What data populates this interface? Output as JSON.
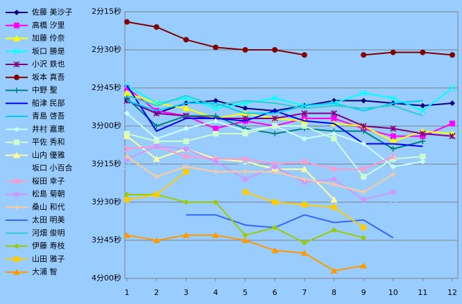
{
  "chart_data": {
    "type": "line",
    "x": [
      1,
      2,
      3,
      4,
      5,
      6,
      7,
      8,
      9,
      10,
      11,
      12
    ],
    "xlim": [
      1,
      12
    ],
    "xticks": [
      1,
      2,
      3,
      4,
      5,
      6,
      7,
      8,
      9,
      10,
      11,
      12
    ],
    "ylim": [
      135,
      240
    ],
    "y_inverted": true,
    "yticks": [
      {
        "value": 135,
        "label": "2分15秒"
      },
      {
        "value": 150,
        "label": "2分30秒"
      },
      {
        "value": 165,
        "label": "2分45秒"
      },
      {
        "value": 180,
        "label": "3分00秒"
      },
      {
        "value": 195,
        "label": "3分15秒"
      },
      {
        "value": 210,
        "label": "3分30秒"
      },
      {
        "value": 225,
        "label": "3分45秒"
      },
      {
        "value": 240,
        "label": "4分00秒"
      }
    ],
    "grid": true,
    "legend": "left",
    "series": [
      {
        "name": "佐藤 美沙子",
        "color": "#000080",
        "marker": "diamond",
        "values": [
          170,
          175,
          171,
          170,
          173,
          174,
          172,
          170,
          170,
          171,
          172,
          171
        ]
      },
      {
        "name": "高橋 汐里",
        "color": "#ff00ff",
        "marker": "square",
        "values": [
          165,
          174,
          176,
          181,
          178,
          180,
          177,
          177,
          181,
          184,
          184,
          179
        ]
      },
      {
        "name": "加藤 伶奈",
        "color": "#ffff00",
        "marker": "triangle",
        "values": [
          167,
          171,
          173,
          177,
          175,
          177,
          178,
          179,
          180,
          186,
          182,
          183
        ]
      },
      {
        "name": "坂口 勝是",
        "color": "#00ffff",
        "marker": "x",
        "values": [
          164,
          171,
          169,
          173,
          171,
          169,
          172,
          171,
          167,
          169,
          174,
          165
        ]
      },
      {
        "name": "小沢 鉄也",
        "color": "#800080",
        "marker": "asterisk",
        "values": [
          170,
          175,
          176,
          177,
          177,
          177,
          175,
          175,
          180,
          181,
          183,
          184
        ]
      },
      {
        "name": "坂本 真吾",
        "color": "#800000",
        "marker": "circle",
        "values": [
          139,
          141,
          146,
          149,
          150,
          150,
          152,
          null,
          152,
          151,
          151,
          152
        ]
      },
      {
        "name": "中野 聖",
        "color": "#008080",
        "marker": "plus",
        "values": [
          169,
          180,
          176,
          176,
          181,
          183,
          181,
          182,
          182,
          189,
          186,
          null
        ]
      },
      {
        "name": "船津 民部",
        "color": "#0000ff",
        "marker": "none",
        "values": [
          164,
          182,
          177,
          177,
          178,
          174,
          178,
          179,
          187,
          187,
          188,
          null
        ]
      },
      {
        "name": "青島 啓吾",
        "color": "#00ccff",
        "marker": "none",
        "values": [
          170,
          174,
          171,
          171,
          175,
          175,
          172,
          171,
          174,
          171,
          170,
          null
        ]
      },
      {
        "name": "井村 嘉恵",
        "color": "#ccffff",
        "marker": "diamond",
        "values": [
          175,
          185,
          181,
          178,
          182,
          180,
          185,
          183,
          187,
          196,
          194,
          null
        ]
      },
      {
        "name": "平佐 秀和",
        "color": "#ccffcc",
        "marker": "square",
        "values": [
          183,
          186,
          186,
          183,
          183,
          180,
          180,
          185,
          200,
          193,
          192,
          null
        ]
      },
      {
        "name": "山内 優雅",
        "color": "#ffff99",
        "marker": "triangle",
        "values": [
          184,
          193,
          189,
          193,
          194,
          197,
          197,
          209,
          null,
          null,
          null,
          null
        ]
      },
      {
        "name": "坂口 小百合",
        "color": "#99ccff",
        "marker": "x",
        "values": [
          196,
          196,
          196,
          200,
          194,
          202,
          202,
          201,
          205,
          209,
          205,
          null
        ]
      },
      {
        "name": "桜田 幸子",
        "color": "#ff99cc",
        "marker": "asterisk",
        "values": [
          189,
          188,
          192,
          193,
          193,
          195,
          194,
          197,
          197,
          192,
          null,
          null
        ]
      },
      {
        "name": "松島 菊朝",
        "color": "#cc99ff",
        "marker": "circle",
        "values": [
          193,
          188,
          189,
          194,
          201,
          196,
          202,
          201,
          209,
          206,
          null,
          null
        ]
      },
      {
        "name": "桑山 和代",
        "color": "#ffcc99",
        "marker": "plus",
        "values": [
          192,
          200,
          196,
          198,
          198,
          198,
          201,
          203,
          206,
          199,
          null,
          null
        ]
      },
      {
        "name": "太田 明美",
        "color": "#3366ff",
        "marker": "none",
        "values": [
          null,
          null,
          215,
          215,
          219,
          220,
          215,
          218,
          217,
          224,
          null,
          null
        ]
      },
      {
        "name": "河畑 俊明",
        "color": "#33cccc",
        "marker": "none",
        "values": [
          168,
          172,
          168,
          172,
          170,
          171,
          173,
          172,
          173,
          172,
          176,
          null
        ]
      },
      {
        "name": "伊藤 寿枝",
        "color": "#99cc00",
        "marker": "diamond",
        "values": [
          207,
          207,
          210,
          210,
          223,
          220,
          226,
          221,
          224,
          null,
          null,
          null
        ]
      },
      {
        "name": "山田 雅子",
        "color": "#ffcc00",
        "marker": "square",
        "values": [
          209,
          207,
          198,
          null,
          206,
          210,
          211,
          212,
          220,
          null,
          null,
          null
        ]
      },
      {
        "name": "大浦 智",
        "color": "#ff9900",
        "marker": "triangle",
        "values": [
          223,
          225,
          223,
          223,
          225,
          229,
          230,
          237,
          235,
          null,
          null,
          null
        ]
      }
    ]
  }
}
